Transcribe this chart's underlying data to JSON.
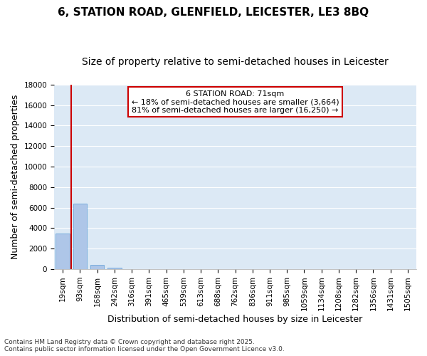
{
  "title": "6, STATION ROAD, GLENFIELD, LEICESTER, LE3 8BQ",
  "subtitle": "Size of property relative to semi-detached houses in Leicester",
  "xlabel": "Distribution of semi-detached houses by size in Leicester",
  "ylabel": "Number of semi-detached properties",
  "categories": [
    "19sqm",
    "93sqm",
    "168sqm",
    "242sqm",
    "316sqm",
    "391sqm",
    "465sqm",
    "539sqm",
    "613sqm",
    "688sqm",
    "762sqm",
    "836sqm",
    "911sqm",
    "985sqm",
    "1059sqm",
    "1134sqm",
    "1208sqm",
    "1282sqm",
    "1356sqm",
    "1431sqm",
    "1505sqm"
  ],
  "values": [
    3500,
    6400,
    400,
    150,
    0,
    0,
    0,
    0,
    0,
    0,
    0,
    0,
    0,
    0,
    0,
    0,
    0,
    0,
    0,
    0,
    0
  ],
  "bar_color": "#aec6e8",
  "bar_edge_color": "#5b9bd5",
  "vline_color": "#cc0000",
  "annotation_text": "6 STATION ROAD: 71sqm\n← 18% of semi-detached houses are smaller (3,664)\n81% of semi-detached houses are larger (16,250) →",
  "annotation_box_color": "#cc0000",
  "annotation_text_color": "#000000",
  "ylim": [
    0,
    18000
  ],
  "yticks": [
    0,
    2000,
    4000,
    6000,
    8000,
    10000,
    12000,
    14000,
    16000,
    18000
  ],
  "background_color": "#dce9f5",
  "fig_background_color": "#ffffff",
  "grid_color": "#ffffff",
  "footer_line1": "Contains HM Land Registry data © Crown copyright and database right 2025.",
  "footer_line2": "Contains public sector information licensed under the Open Government Licence v3.0.",
  "title_fontsize": 11,
  "subtitle_fontsize": 10,
  "tick_fontsize": 7.5,
  "ylabel_fontsize": 9,
  "xlabel_fontsize": 9,
  "footer_fontsize": 6.5
}
